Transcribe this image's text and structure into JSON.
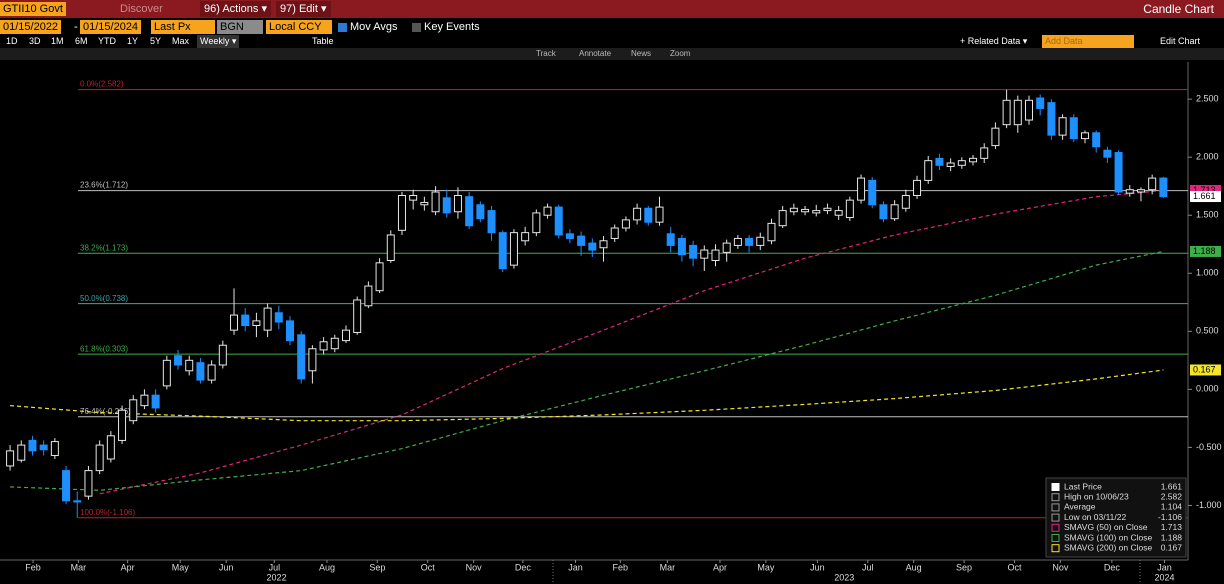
{
  "ui": {
    "ticker": "GTII10 Govt",
    "discover": "Discover",
    "actions": "96) Actions ▾",
    "edit": "97) Edit ▾",
    "window_title": "Candle Chart",
    "start_date": "01/15/2022",
    "date_sep": "-",
    "end_date": "01/15/2024",
    "field": "Last Px",
    "source": "BGN",
    "currency": "Local CCY",
    "mov_avgs": "Mov Avgs",
    "key_events": "Key Events",
    "periods": [
      "1D",
      "3D",
      "1M",
      "6M",
      "YTD",
      "1Y",
      "5Y",
      "Max"
    ],
    "frequency": "Weekly ▾",
    "table": "Table",
    "related_data": "+ Related Data ▾",
    "add_data": "Add Data",
    "edit_chart": "Edit Chart",
    "tools": [
      "Track",
      "Annotate",
      "News",
      "Zoom"
    ]
  },
  "chart_data": {
    "type": "candlestick",
    "up_color": "#e6e6e6",
    "down_color": "#1e8fff",
    "ohlc": [
      [
        -0.66,
        -0.48,
        -0.7,
        -0.53
      ],
      [
        -0.61,
        -0.44,
        -0.63,
        -0.48
      ],
      [
        -0.44,
        -0.4,
        -0.57,
        -0.53
      ],
      [
        -0.48,
        -0.44,
        -0.57,
        -0.52
      ],
      [
        -0.57,
        -0.42,
        -0.6,
        -0.45
      ],
      [
        -0.7,
        -0.66,
        -0.99,
        -0.96
      ],
      [
        -0.96,
        -0.88,
        -1.106,
        -0.97
      ],
      [
        -0.92,
        -0.66,
        -0.95,
        -0.7
      ],
      [
        -0.7,
        -0.44,
        -0.73,
        -0.48
      ],
      [
        -0.6,
        -0.36,
        -0.63,
        -0.4
      ],
      [
        -0.44,
        -0.14,
        -0.47,
        -0.18
      ],
      [
        -0.27,
        -0.05,
        -0.3,
        -0.09
      ],
      [
        -0.14,
        0.0,
        -0.17,
        -0.05
      ],
      [
        -0.05,
        0.0,
        -0.2,
        -0.16
      ],
      [
        0.03,
        0.29,
        0.0,
        0.25
      ],
      [
        0.29,
        0.34,
        0.17,
        0.21
      ],
      [
        0.16,
        0.29,
        0.12,
        0.25
      ],
      [
        0.23,
        0.27,
        0.05,
        0.08
      ],
      [
        0.08,
        0.25,
        0.05,
        0.21
      ],
      [
        0.21,
        0.42,
        0.18,
        0.38
      ],
      [
        0.51,
        0.87,
        0.47,
        0.64
      ],
      [
        0.64,
        0.7,
        0.5,
        0.55
      ],
      [
        0.55,
        0.66,
        0.45,
        0.59
      ],
      [
        0.51,
        0.74,
        0.45,
        0.7
      ],
      [
        0.66,
        0.72,
        0.52,
        0.58
      ],
      [
        0.59,
        0.63,
        0.38,
        0.42
      ],
      [
        0.47,
        0.5,
        0.05,
        0.09
      ],
      [
        0.16,
        0.38,
        0.05,
        0.35
      ],
      [
        0.34,
        0.45,
        0.3,
        0.41
      ],
      [
        0.35,
        0.47,
        0.32,
        0.44
      ],
      [
        0.42,
        0.55,
        0.4,
        0.51
      ],
      [
        0.49,
        0.8,
        0.47,
        0.77
      ],
      [
        0.72,
        0.93,
        0.7,
        0.89
      ],
      [
        0.85,
        1.13,
        0.83,
        1.09
      ],
      [
        1.11,
        1.37,
        1.09,
        1.33
      ],
      [
        1.37,
        1.7,
        1.33,
        1.67
      ],
      [
        1.63,
        1.72,
        1.55,
        1.67
      ],
      [
        1.59,
        1.66,
        1.54,
        1.61
      ],
      [
        1.53,
        1.75,
        1.5,
        1.7
      ],
      [
        1.65,
        1.72,
        1.48,
        1.52
      ],
      [
        1.53,
        1.74,
        1.47,
        1.67
      ],
      [
        1.66,
        1.7,
        1.38,
        1.41
      ],
      [
        1.59,
        1.62,
        1.44,
        1.47
      ],
      [
        1.54,
        1.58,
        1.28,
        1.35
      ],
      [
        1.35,
        1.37,
        1.01,
        1.04
      ],
      [
        1.07,
        1.38,
        1.04,
        1.35
      ],
      [
        1.28,
        1.4,
        1.24,
        1.35
      ],
      [
        1.35,
        1.55,
        1.32,
        1.52
      ],
      [
        1.5,
        1.6,
        1.47,
        1.57
      ],
      [
        1.57,
        1.59,
        1.3,
        1.33
      ],
      [
        1.34,
        1.38,
        1.26,
        1.3
      ],
      [
        1.32,
        1.36,
        1.15,
        1.24
      ],
      [
        1.26,
        1.3,
        1.14,
        1.2
      ],
      [
        1.22,
        1.32,
        1.1,
        1.28
      ],
      [
        1.3,
        1.42,
        1.27,
        1.39
      ],
      [
        1.39,
        1.49,
        1.36,
        1.46
      ],
      [
        1.46,
        1.6,
        1.42,
        1.56
      ],
      [
        1.56,
        1.58,
        1.41,
        1.44
      ],
      [
        1.44,
        1.66,
        1.41,
        1.57
      ],
      [
        1.34,
        1.4,
        1.18,
        1.24
      ],
      [
        1.3,
        1.33,
        1.1,
        1.16
      ],
      [
        1.24,
        1.28,
        1.06,
        1.13
      ],
      [
        1.13,
        1.24,
        1.02,
        1.2
      ],
      [
        1.11,
        1.25,
        1.06,
        1.2
      ],
      [
        1.18,
        1.29,
        1.1,
        1.26
      ],
      [
        1.24,
        1.33,
        1.21,
        1.3
      ],
      [
        1.3,
        1.33,
        1.18,
        1.24
      ],
      [
        1.24,
        1.35,
        1.2,
        1.31
      ],
      [
        1.28,
        1.47,
        1.25,
        1.43
      ],
      [
        1.41,
        1.58,
        1.39,
        1.54
      ],
      [
        1.53,
        1.6,
        1.5,
        1.56
      ],
      [
        1.53,
        1.58,
        1.5,
        1.55
      ],
      [
        1.52,
        1.59,
        1.49,
        1.54
      ],
      [
        1.54,
        1.6,
        1.51,
        1.56
      ],
      [
        1.5,
        1.58,
        1.46,
        1.54
      ],
      [
        1.48,
        1.66,
        1.45,
        1.63
      ],
      [
        1.63,
        1.85,
        1.6,
        1.82
      ],
      [
        1.8,
        1.83,
        1.56,
        1.59
      ],
      [
        1.59,
        1.62,
        1.44,
        1.47
      ],
      [
        1.47,
        1.63,
        1.45,
        1.59
      ],
      [
        1.56,
        1.72,
        1.53,
        1.67
      ],
      [
        1.67,
        1.84,
        1.64,
        1.8
      ],
      [
        1.8,
        2.01,
        1.77,
        1.97
      ],
      [
        1.99,
        2.03,
        1.89,
        1.93
      ],
      [
        1.92,
        1.99,
        1.88,
        1.95
      ],
      [
        1.93,
        2.0,
        1.9,
        1.97
      ],
      [
        1.96,
        2.02,
        1.93,
        1.99
      ],
      [
        1.99,
        2.12,
        1.95,
        2.08
      ],
      [
        2.1,
        2.3,
        2.07,
        2.25
      ],
      [
        2.28,
        2.582,
        2.25,
        2.49
      ],
      [
        2.28,
        2.53,
        2.21,
        2.49
      ],
      [
        2.32,
        2.53,
        2.28,
        2.49
      ],
      [
        2.51,
        2.54,
        2.36,
        2.42
      ],
      [
        2.47,
        2.5,
        2.15,
        2.19
      ],
      [
        2.19,
        2.37,
        2.15,
        2.34
      ],
      [
        2.34,
        2.37,
        2.13,
        2.16
      ],
      [
        2.16,
        2.23,
        2.12,
        2.21
      ],
      [
        2.21,
        2.23,
        2.04,
        2.09
      ],
      [
        2.06,
        2.09,
        1.95,
        2.0
      ],
      [
        2.04,
        2.06,
        1.68,
        1.7
      ],
      [
        1.69,
        1.76,
        1.66,
        1.72
      ],
      [
        1.7,
        1.74,
        1.62,
        1.72
      ],
      [
        1.72,
        1.85,
        1.68,
        1.82
      ],
      [
        1.82,
        1.83,
        1.65,
        1.661
      ]
    ],
    "xlim": [
      -0.9,
      105.2
    ],
    "ylim": [
      -1.47,
      2.82
    ],
    "yticks": [
      {
        "value": 2.5,
        "label": "2.500"
      },
      {
        "value": 2,
        "label": "2.000"
      },
      {
        "value": 1.5,
        "label": "1.500"
      },
      {
        "value": 1,
        "label": "1.000"
      },
      {
        "value": 0.5,
        "label": "0.500"
      },
      {
        "value": 0,
        "label": "0.000"
      },
      {
        "value": -0.5,
        "label": "-0.500"
      },
      {
        "value": -1,
        "label": "-1.000"
      }
    ],
    "xticks": [
      {
        "value": 2.05,
        "label": "Feb"
      },
      {
        "value": 6.1,
        "label": "Mar"
      },
      {
        "value": 10.5,
        "label": "Apr"
      },
      {
        "value": 15.2,
        "label": "May"
      },
      {
        "value": 19.3,
        "label": "Jun"
      },
      {
        "value": 23.6,
        "label": "Jul"
      },
      {
        "value": 28.3,
        "label": "Aug"
      },
      {
        "value": 32.8,
        "label": "Sep"
      },
      {
        "value": 37.3,
        "label": "Oct"
      },
      {
        "value": 41.4,
        "label": "Nov"
      },
      {
        "value": 45.8,
        "label": "Dec"
      },
      {
        "value": 50.5,
        "label": "Jan"
      },
      {
        "value": 54.5,
        "label": "Feb"
      },
      {
        "value": 58.7,
        "label": "Mar"
      },
      {
        "value": 63.4,
        "label": "Apr"
      },
      {
        "value": 67.5,
        "label": "May"
      },
      {
        "value": 72.1,
        "label": "Jun"
      },
      {
        "value": 76.6,
        "label": "Jul"
      },
      {
        "value": 80.7,
        "label": "Aug"
      },
      {
        "value": 85.2,
        "label": "Sep"
      },
      {
        "value": 89.7,
        "label": "Oct"
      },
      {
        "value": 93.8,
        "label": "Nov"
      },
      {
        "value": 98.4,
        "label": "Dec"
      },
      {
        "value": 103.1,
        "label": "Jan"
      }
    ],
    "year_ticks": [
      {
        "value": 23.8,
        "label": "2022"
      },
      {
        "value": 74.5,
        "label": "2023"
      },
      {
        "value": 103.1,
        "label": "2024"
      }
    ],
    "fib_levels": [
      {
        "label": "0.0%(2.582)",
        "value": 2.582,
        "color": "#b3262d"
      },
      {
        "label": "23.6%(1.712)",
        "value": 1.712,
        "color": "#bfbfbf"
      },
      {
        "label": "38.2%(1.173)",
        "value": 1.173,
        "color": "#3fae49"
      },
      {
        "label": "50.0%(0.738)",
        "value": 0.738,
        "color": "#3aa6a6"
      },
      {
        "label": "61.8%(0.303)",
        "value": 0.303,
        "color": "#3fae49"
      },
      {
        "label": "76.4%(-0.236)",
        "value": -0.236,
        "color": "#bfbfbf"
      },
      {
        "label": "100.0%(-1.106)",
        "value": -1.106,
        "color": "#b3262d"
      }
    ],
    "stats": [
      {
        "label": "Last Price",
        "value": 1.661
      },
      {
        "label": "High on 10/06/23",
        "value": 2.582
      },
      {
        "label": "Average",
        "value": 1.104
      },
      {
        "label": "Low on 03/11/22",
        "value": -1.106
      }
    ],
    "series": [
      {
        "name": "SMAVG (50)  on Close",
        "color": "#e0267a",
        "last": 1.713,
        "x": [
          8,
          17,
          26,
          35,
          44,
          53,
          62,
          71,
          79,
          88,
          97,
          103
        ],
        "values": [
          -0.9,
          -0.72,
          -0.48,
          -0.22,
          0.18,
          0.51,
          0.85,
          1.13,
          1.33,
          1.51,
          1.66,
          1.713
        ]
      },
      {
        "name": "SMAVG (100)  on Close",
        "color": "#3fae49",
        "last": 1.188,
        "x": [
          0,
          8,
          17,
          26,
          35,
          44,
          53,
          62,
          71,
          79,
          88,
          97,
          103
        ],
        "values": [
          -0.84,
          -0.87,
          -0.78,
          -0.7,
          -0.51,
          -0.27,
          -0.05,
          0.16,
          0.38,
          0.59,
          0.81,
          1.07,
          1.188
        ]
      },
      {
        "name": "SMAVG (200)  on Close",
        "color": "#f2e626",
        "last": 0.167,
        "x": [
          0,
          8,
          17,
          26,
          35,
          44,
          53,
          62,
          71,
          79,
          88,
          97,
          103
        ],
        "values": [
          -0.14,
          -0.2,
          -0.23,
          -0.27,
          -0.27,
          -0.25,
          -0.22,
          -0.18,
          -0.13,
          -0.08,
          -0.01,
          0.09,
          0.167
        ]
      }
    ]
  }
}
